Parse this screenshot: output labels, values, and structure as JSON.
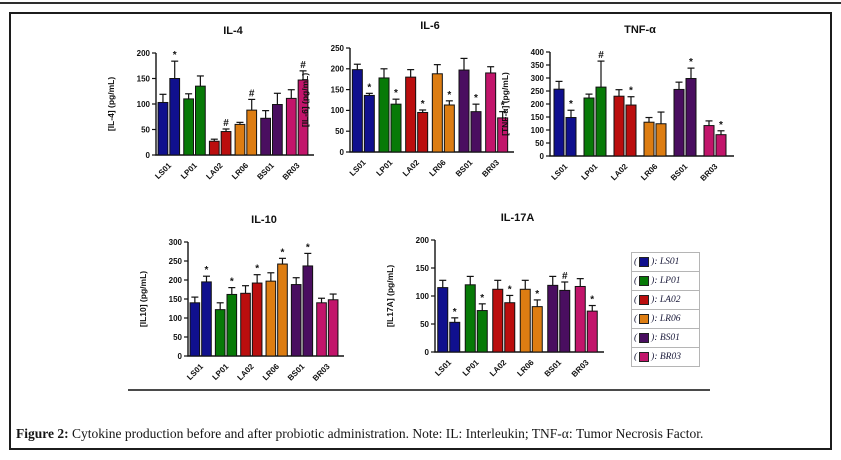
{
  "figure": {
    "caption_prefix": "Figure 2:",
    "caption_text": " Cytokine production before and after probiotic administration. Note: IL: Interleukin; TNF-α: Tumor Necrosis Factor."
  },
  "legend": {
    "open": "(",
    "close": "):",
    "entries": [
      {
        "label": "LS01",
        "color": "#10108E"
      },
      {
        "label": "LP01",
        "color": "#077A07"
      },
      {
        "label": "LA02",
        "color": "#BB0E0E"
      },
      {
        "label": "LR06",
        "color": "#DD7D12"
      },
      {
        "label": "BS01",
        "color": "#4A0E60"
      },
      {
        "label": "BR03",
        "color": "#C2156B"
      }
    ]
  },
  "chart_data": [
    {
      "type": "bar",
      "id": "il4",
      "title": "IL-4",
      "ylabel": "[IL-4] (pg/mL)",
      "ylim": [
        0,
        200
      ],
      "ytick_step": 50,
      "categories": [
        "LS01",
        "LP01",
        "LA02",
        "LR06",
        "BS01",
        "BR03"
      ],
      "series": [
        {
          "name": "before",
          "values": [
            103,
            110,
            27,
            60,
            72,
            111
          ],
          "errors": [
            16,
            10,
            4,
            4,
            15,
            17
          ]
        },
        {
          "name": "after",
          "values": [
            150,
            135,
            46,
            88,
            99,
            147
          ],
          "errors": [
            34,
            20,
            5,
            21,
            22,
            18
          ]
        }
      ],
      "annotations": [
        "*",
        "",
        "#",
        "#",
        "",
        "#"
      ]
    },
    {
      "type": "bar",
      "id": "il6",
      "title": "IL-6",
      "ylabel": "[IL-6] (pg/mL)",
      "ylim": [
        0,
        250
      ],
      "ytick_step": 50,
      "categories": [
        "LS01",
        "LP01",
        "LA02",
        "LR06",
        "BS01",
        "BR03"
      ],
      "series": [
        {
          "name": "before",
          "values": [
            198,
            178,
            180,
            188,
            197,
            190
          ],
          "errors": [
            13,
            22,
            18,
            22,
            28,
            15
          ]
        },
        {
          "name": "after",
          "values": [
            136,
            115,
            95,
            113,
            97,
            82
          ],
          "errors": [
            5,
            12,
            6,
            10,
            18,
            15
          ]
        }
      ],
      "annotations": [
        "*",
        "*",
        "*",
        "*",
        "*",
        "*"
      ]
    },
    {
      "type": "bar",
      "id": "tnf",
      "title": "TNF-α",
      "ylabel": "[TNF-α] (pg/mL)",
      "ylim": [
        0,
        400
      ],
      "ytick_step": 50,
      "categories": [
        "LS01",
        "LP01",
        "LA02",
        "LR06",
        "BS01",
        "BR03"
      ],
      "series": [
        {
          "name": "before",
          "values": [
            257,
            223,
            230,
            130,
            256,
            117
          ],
          "errors": [
            30,
            15,
            25,
            18,
            28,
            18
          ]
        },
        {
          "name": "after",
          "values": [
            148,
            265,
            196,
            124,
            298,
            82
          ],
          "errors": [
            28,
            100,
            32,
            45,
            40,
            15
          ]
        }
      ],
      "annotations": [
        "*",
        "#",
        "*",
        "",
        "*",
        "*"
      ]
    },
    {
      "type": "bar",
      "id": "il10",
      "title": "IL-10",
      "ylabel": "[IL10] (pg/mL)",
      "ylim": [
        0,
        300
      ],
      "ytick_step": 50,
      "categories": [
        "LS01",
        "LP01",
        "LA02",
        "LR06",
        "BS01",
        "BR03"
      ],
      "series": [
        {
          "name": "before",
          "values": [
            140,
            122,
            165,
            197,
            188,
            140
          ],
          "errors": [
            15,
            18,
            20,
            22,
            18,
            12
          ]
        },
        {
          "name": "after",
          "values": [
            195,
            162,
            192,
            242,
            237,
            148
          ],
          "errors": [
            15,
            18,
            22,
            15,
            33,
            15
          ]
        }
      ],
      "annotations": [
        "*",
        "*",
        "*",
        "*",
        "*",
        ""
      ]
    },
    {
      "type": "bar",
      "id": "il17a",
      "title": "IL-17A",
      "ylabel": "[IL17A] (pg/mL)",
      "ylim": [
        0,
        200
      ],
      "ytick_step": 50,
      "categories": [
        "LS01",
        "LP01",
        "LA02",
        "LR06",
        "BS01",
        "BR03"
      ],
      "series": [
        {
          "name": "before",
          "values": [
            115,
            120,
            112,
            112,
            119,
            117
          ],
          "errors": [
            13,
            15,
            16,
            16,
            16,
            14
          ]
        },
        {
          "name": "after",
          "values": [
            53,
            74,
            88,
            81,
            110,
            73
          ],
          "errors": [
            8,
            12,
            13,
            12,
            15,
            10
          ]
        }
      ],
      "annotations": [
        "*",
        "*",
        "*",
        "*",
        "#",
        "*"
      ]
    }
  ]
}
